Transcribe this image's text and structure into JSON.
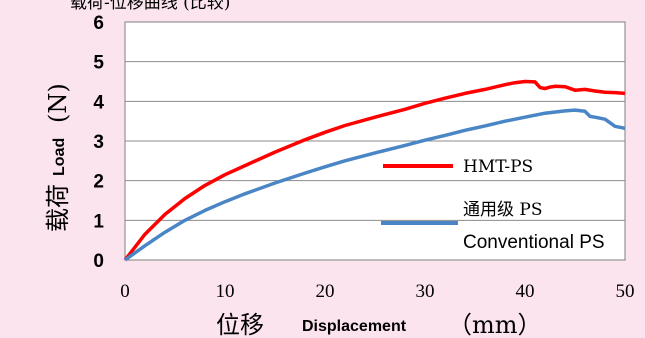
{
  "chart_data": {
    "type": "line",
    "header_text": "载荷-位移曲线 (比较)",
    "xlabel_cjk": "位移",
    "xlabel_en": "Displacement",
    "xlabel_unit": "（mm）",
    "ylabel_cjk": "载荷",
    "ylabel_en": "Load",
    "ylabel_unit": "(N)",
    "xlim": [
      0,
      50
    ],
    "ylim": [
      0,
      6
    ],
    "xticks": [
      "0",
      "10",
      "20",
      "30",
      "40",
      "50"
    ],
    "yticks": [
      "0",
      "1",
      "2",
      "3",
      "4",
      "5",
      "6"
    ],
    "grid": "horizontal",
    "legend_position": "right",
    "series": [
      {
        "name": "HMT-PS",
        "color": "#ff0000",
        "x": [
          0,
          2,
          4,
          6,
          8,
          10,
          12,
          15,
          18,
          20,
          22,
          25,
          28,
          30,
          32,
          34,
          36,
          38,
          39,
          40,
          41,
          41.5,
          42,
          42.5,
          43,
          44,
          45,
          46,
          47,
          48,
          49,
          50
        ],
        "y": [
          0,
          0.65,
          1.15,
          1.55,
          1.88,
          2.15,
          2.38,
          2.72,
          3.03,
          3.22,
          3.39,
          3.6,
          3.8,
          3.95,
          4.08,
          4.2,
          4.3,
          4.42,
          4.47,
          4.5,
          4.49,
          4.35,
          4.32,
          4.36,
          4.38,
          4.37,
          4.28,
          4.3,
          4.26,
          4.23,
          4.22,
          4.2
        ]
      },
      {
        "name_cjk": "通用级",
        "name_suffix": "PS",
        "name": "Conventional PS",
        "color": "#4a86c5",
        "x": [
          0,
          2,
          4,
          6,
          8,
          10,
          12,
          15,
          18,
          20,
          22,
          25,
          28,
          30,
          32,
          34,
          36,
          38,
          40,
          42,
          44,
          45,
          46,
          46.5,
          47,
          48,
          49,
          50
        ],
        "y": [
          0,
          0.36,
          0.7,
          1.0,
          1.25,
          1.47,
          1.67,
          1.94,
          2.19,
          2.35,
          2.5,
          2.7,
          2.89,
          3.02,
          3.14,
          3.27,
          3.38,
          3.5,
          3.6,
          3.7,
          3.76,
          3.78,
          3.75,
          3.62,
          3.6,
          3.55,
          3.37,
          3.32
        ]
      }
    ]
  }
}
